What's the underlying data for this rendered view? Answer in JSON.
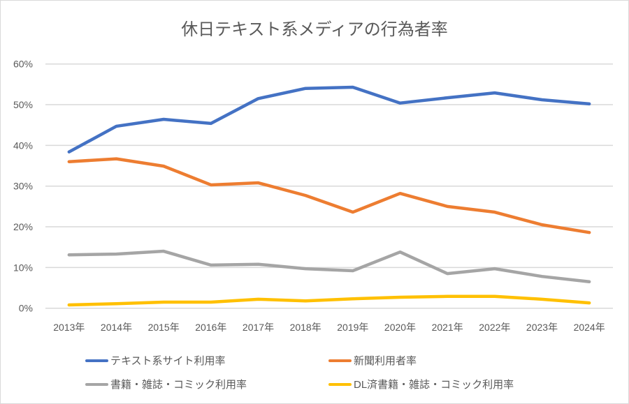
{
  "chart_data": {
    "type": "line",
    "title": "休日テキスト系メディアの行為者率",
    "categories": [
      "2013年",
      "2014年",
      "2015年",
      "2016年",
      "2017年",
      "2018年",
      "2019年",
      "2020年",
      "2021年",
      "2022年",
      "2023年",
      "2024年"
    ],
    "yticks": [
      "0%",
      "10%",
      "20%",
      "30%",
      "40%",
      "50%",
      "60%"
    ],
    "ylim": [
      0,
      60
    ],
    "grid": true,
    "legend_position": "bottom",
    "series": [
      {
        "name": "テキスト系サイト利用率",
        "color": "#4472c4",
        "values": [
          38.4,
          44.7,
          46.4,
          45.4,
          51.5,
          54.0,
          54.3,
          50.4,
          51.7,
          52.9,
          51.2,
          50.2
        ]
      },
      {
        "name": "新聞利用者率",
        "color": "#ed7d31",
        "values": [
          36.0,
          36.7,
          34.9,
          30.3,
          30.8,
          27.7,
          23.6,
          28.2,
          25.0,
          23.6,
          20.5,
          18.6
        ]
      },
      {
        "name": "書籍・雑誌・コミック利用率",
        "color": "#a5a5a5",
        "values": [
          13.1,
          13.3,
          14.0,
          10.6,
          10.8,
          9.7,
          9.2,
          13.8,
          8.5,
          9.7,
          7.8,
          6.5
        ]
      },
      {
        "name": "DL済書籍・雑誌・コミック利用率",
        "color": "#ffc000",
        "values": [
          0.8,
          1.1,
          1.5,
          1.5,
          2.2,
          1.8,
          2.3,
          2.7,
          2.9,
          2.9,
          2.2,
          1.3
        ]
      }
    ]
  }
}
